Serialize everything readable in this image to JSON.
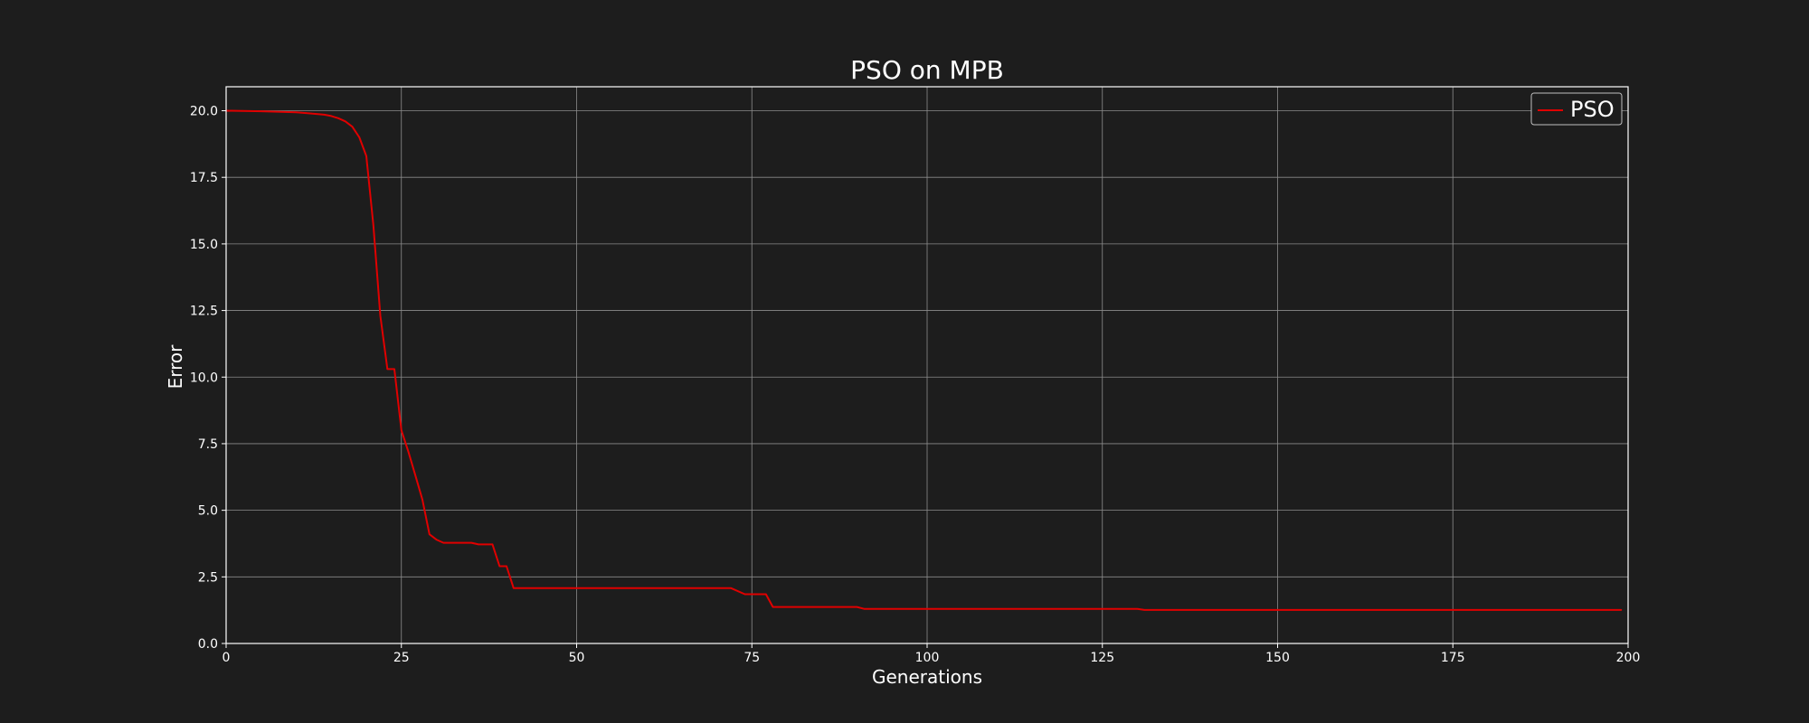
{
  "colors": {
    "background": "#1d1d1d",
    "axes": "#ffffff",
    "grid": "#8c8c8c",
    "series": "#e00000"
  },
  "chart_data": {
    "type": "line",
    "title": "PSO on MPB",
    "xlabel": "Generations",
    "ylabel": "Error",
    "xlim": [
      0,
      200
    ],
    "ylim": [
      0,
      20.9
    ],
    "xticks": [
      0,
      25,
      50,
      75,
      100,
      125,
      150,
      175,
      200
    ],
    "xtick_labels": [
      "0",
      "25",
      "50",
      "75",
      "100",
      "125",
      "150",
      "175",
      "200"
    ],
    "yticks": [
      0,
      2.5,
      5,
      7.5,
      10,
      12.5,
      15,
      17.5,
      20
    ],
    "ytick_labels": [
      "0.0",
      "2.5",
      "5.0",
      "7.5",
      "10.0",
      "12.5",
      "15.0",
      "17.5",
      "20.0"
    ],
    "grid": true,
    "legend_position": "top-right",
    "series": [
      {
        "name": "PSO",
        "color": "#e00000",
        "x": [
          0,
          5,
          10,
          12,
          14,
          15,
          16,
          17,
          18,
          19,
          20,
          21,
          22,
          23,
          24,
          25,
          26,
          27,
          28,
          29,
          30,
          31,
          35,
          36,
          38,
          39,
          40,
          41,
          72,
          74,
          75,
          77,
          78,
          90,
          91,
          130,
          131,
          199
        ],
        "y": [
          20.0,
          19.98,
          19.94,
          19.9,
          19.85,
          19.8,
          19.72,
          19.6,
          19.4,
          19.0,
          18.3,
          15.7,
          12.3,
          10.3,
          10.3,
          8.0,
          7.2,
          6.3,
          5.4,
          4.1,
          3.9,
          3.78,
          3.78,
          3.72,
          3.72,
          2.9,
          2.9,
          2.08,
          2.08,
          1.85,
          1.85,
          1.85,
          1.37,
          1.37,
          1.3,
          1.3,
          1.26,
          1.26
        ]
      }
    ]
  }
}
